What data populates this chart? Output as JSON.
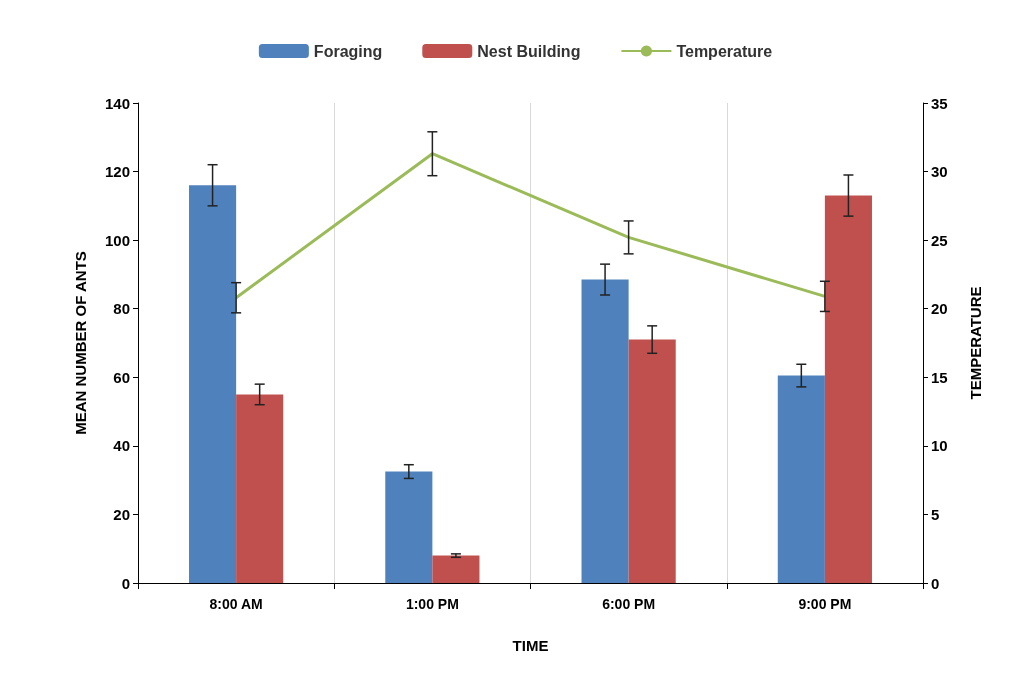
{
  "chart_data": {
    "type": "bar",
    "xlabel": "TIME",
    "ylabel": "MEAN NUMBER OF ANTS",
    "y2label": "TEMPERATURE",
    "categories": [
      "8:00 AM",
      "1:00 PM",
      "6:00 PM",
      "9:00 PM"
    ],
    "series": [
      {
        "name": "Foraging",
        "color": "#4f81bd",
        "values": [
          116,
          32.5,
          88.5,
          60.5
        ],
        "errors": [
          6,
          2,
          4.5,
          3.3
        ]
      },
      {
        "name": "Nest Building",
        "color": "#c0504d",
        "values": [
          55,
          8,
          71,
          113
        ],
        "errors": [
          3,
          0.5,
          4,
          6
        ]
      },
      {
        "name": "Temperature",
        "type": "line",
        "axis": "y2",
        "color": "#9bbb59",
        "values": [
          20.8,
          31.3,
          25.2,
          20.9
        ],
        "errors": [
          1.1,
          1.6,
          1.2,
          1.1
        ]
      }
    ],
    "ylim": [
      0,
      140
    ],
    "yticks": [
      0,
      20,
      40,
      60,
      80,
      100,
      120,
      140
    ],
    "y2lim": [
      0,
      35
    ],
    "y2ticks": [
      0,
      5,
      10,
      15,
      20,
      25,
      30,
      35
    ],
    "grid": "x",
    "legend": "top",
    "marker": "none"
  }
}
